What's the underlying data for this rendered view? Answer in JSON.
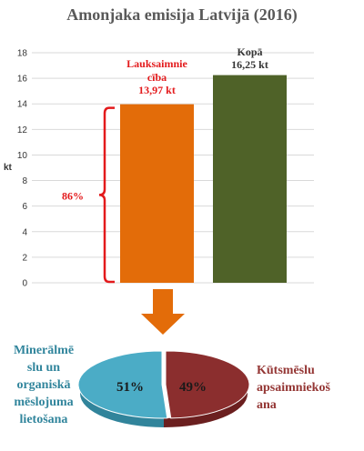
{
  "title": "Amonjaka emisija Latvijā (2016)",
  "colors": {
    "orange": "#E36C09",
    "green": "#4F6228",
    "red_text": "#E31A1C",
    "dark_text": "#333333",
    "bracket": "#E31A1C",
    "arrow": "#E36C09",
    "pie_left": "#4BACC6",
    "pie_right": "#8B2E2E",
    "left_text": "#31859C",
    "right_text": "#943634"
  },
  "chart_data": [
    {
      "type": "bar",
      "title": "Amonjaka emisija Latvijā (2016)",
      "ylabel": "kt",
      "ylim": [
        0,
        18
      ],
      "yticks": [
        "0",
        "2",
        "4",
        "6",
        "8",
        "10",
        "12",
        "14",
        "16",
        "18"
      ],
      "categories": [
        "Lauksaimniecība",
        "Kopā"
      ],
      "values": [
        13.97,
        16.25
      ],
      "bar_labels": [
        [
          "Lauksaimnie",
          "cība",
          "13,97 kt"
        ],
        [
          "Kopā",
          "16,25 kt"
        ]
      ],
      "bracket_label": "86%"
    },
    {
      "type": "pie",
      "slices": [
        {
          "label": "Minerālmēslu un organiskā mēslojuma lietošana",
          "value": 51,
          "text": "51%"
        },
        {
          "label": "Kūtsmēslu apsaimniekošana",
          "value": 49,
          "text": "49%"
        }
      ]
    }
  ],
  "pie_labels": {
    "left_lines": [
      "Minerālmē",
      "slu un",
      "organiskā",
      "mēslojuma",
      "lietošana"
    ],
    "right_lines": [
      "Kūtsmēslu",
      "apsaimniekoš",
      "ana"
    ]
  }
}
